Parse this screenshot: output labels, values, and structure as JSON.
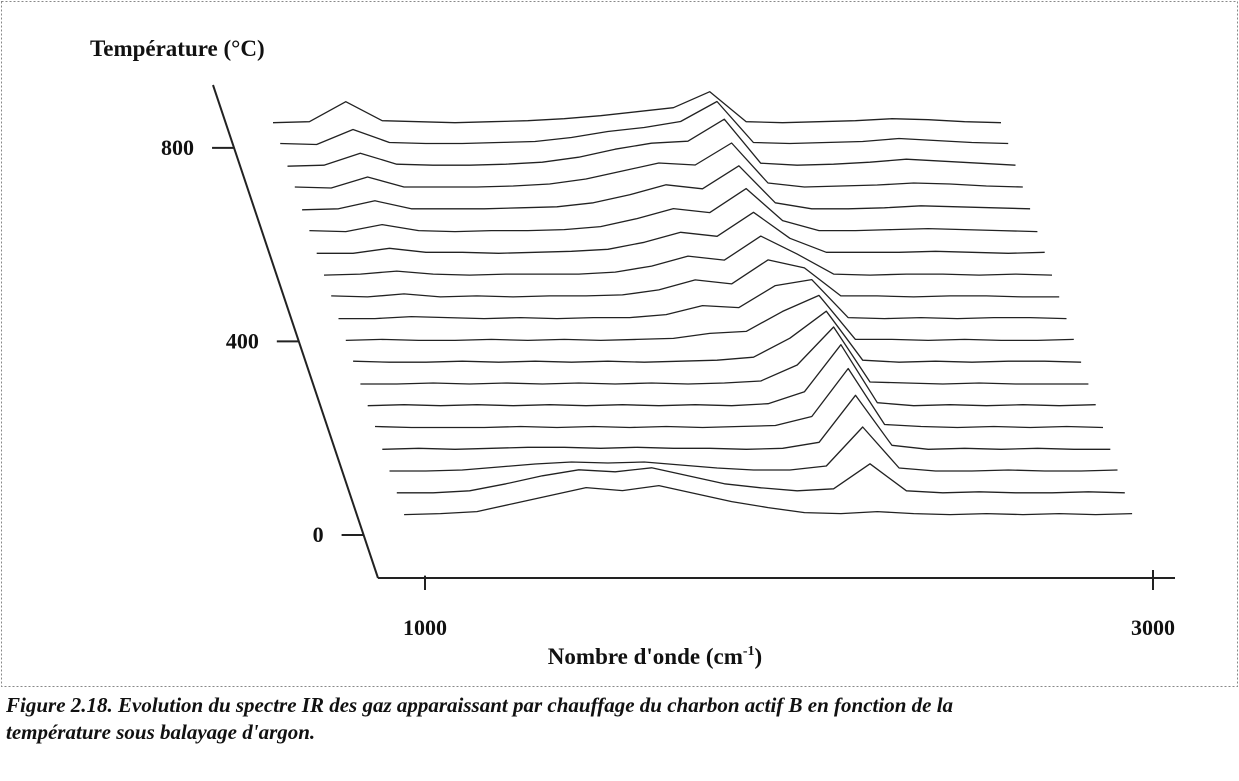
{
  "chart_data": {
    "type": "waterfall",
    "y_label": "Température (°C)",
    "x_label": [
      "Nombre d'onde (cm",
      "-1",
      ")"
    ],
    "caption": [
      "Figure 2.18. Evolution du spectre IR des gaz apparaissant par chauffage du charbon actif B en fonction de la",
      "température sous balayage d'argon."
    ],
    "xlim": [
      870,
      3060
    ],
    "xticks": [
      1000,
      3000
    ],
    "ylim": [
      -89,
      930
    ],
    "yticks": [
      0,
      400,
      800
    ],
    "color": "#222222",
    "x": [
      1000,
      1100,
      1200,
      1300,
      1400,
      1500,
      1600,
      1700,
      1800,
      1900,
      2000,
      2100,
      2200,
      2300,
      2400,
      2500,
      2600,
      2700,
      2800,
      2900,
      3000
    ],
    "series": [
      {
        "y": 40,
        "values": [
          1,
          2,
          4,
          12,
          20,
          28,
          25,
          30,
          22,
          14,
          8,
          3,
          2,
          4,
          2,
          1,
          2,
          1,
          2,
          1,
          2
        ]
      },
      {
        "y": 85,
        "values": [
          1,
          1,
          3,
          10,
          18,
          24,
          22,
          26,
          18,
          10,
          6,
          3,
          5,
          30,
          3,
          1,
          2,
          1,
          1,
          2,
          1
        ]
      },
      {
        "y": 130,
        "values": [
          1,
          1,
          2,
          5,
          8,
          10,
          9,
          10,
          7,
          4,
          2,
          2,
          6,
          45,
          4,
          1,
          1,
          2,
          1,
          1,
          2
        ]
      },
      {
        "y": 175,
        "values": [
          1,
          2,
          1,
          2,
          3,
          3,
          2,
          3,
          2,
          2,
          1,
          2,
          8,
          55,
          5,
          1,
          2,
          1,
          2,
          1,
          1
        ]
      },
      {
        "y": 220,
        "values": [
          2,
          1,
          1,
          1,
          2,
          1,
          2,
          1,
          2,
          1,
          2,
          3,
          12,
          60,
          4,
          2,
          1,
          2,
          1,
          2,
          1
        ]
      },
      {
        "y": 265,
        "values": [
          1,
          2,
          1,
          2,
          1,
          2,
          1,
          2,
          1,
          2,
          1,
          3,
          15,
          62,
          4,
          1,
          2,
          1,
          2,
          1,
          2
        ]
      },
      {
        "y": 310,
        "values": [
          1,
          1,
          2,
          1,
          2,
          1,
          2,
          1,
          2,
          1,
          2,
          4,
          20,
          58,
          3,
          2,
          1,
          2,
          1,
          1,
          1
        ]
      },
      {
        "y": 355,
        "values": [
          2,
          1,
          1,
          2,
          1,
          2,
          1,
          2,
          1,
          2,
          3,
          6,
          25,
          52,
          3,
          1,
          2,
          1,
          2,
          2,
          1
        ]
      },
      {
        "y": 400,
        "values": [
          1,
          2,
          1,
          1,
          2,
          1,
          2,
          1,
          2,
          3,
          8,
          10,
          30,
          46,
          2,
          2,
          1,
          2,
          1,
          1,
          2
        ]
      },
      {
        "y": 445,
        "values": [
          1,
          1,
          3,
          2,
          1,
          2,
          1,
          2,
          2,
          5,
          14,
          12,
          34,
          40,
          2,
          1,
          2,
          1,
          2,
          2,
          1
        ]
      },
      {
        "y": 490,
        "values": [
          2,
          1,
          4,
          1,
          2,
          1,
          2,
          2,
          3,
          8,
          18,
          14,
          38,
          30,
          2,
          2,
          1,
          2,
          2,
          1,
          1
        ]
      },
      {
        "y": 535,
        "values": [
          1,
          2,
          5,
          2,
          1,
          2,
          2,
          2,
          4,
          10,
          20,
          16,
          40,
          22,
          2,
          1,
          2,
          2,
          1,
          2,
          1
        ]
      },
      {
        "y": 580,
        "values": [
          1,
          1,
          6,
          2,
          2,
          1,
          2,
          3,
          5,
          12,
          22,
          18,
          42,
          16,
          2,
          2,
          2,
          3,
          2,
          1,
          2
        ]
      },
      {
        "y": 625,
        "values": [
          2,
          1,
          8,
          2,
          1,
          2,
          2,
          3,
          6,
          14,
          24,
          20,
          44,
          12,
          2,
          2,
          3,
          4,
          3,
          2,
          1
        ]
      },
      {
        "y": 670,
        "values": [
          1,
          2,
          10,
          2,
          2,
          2,
          3,
          4,
          8,
          16,
          26,
          22,
          45,
          8,
          2,
          2,
          3,
          5,
          4,
          3,
          2
        ]
      },
      {
        "y": 715,
        "values": [
          2,
          1,
          12,
          2,
          2,
          2,
          3,
          5,
          10,
          18,
          26,
          24,
          46,
          6,
          2,
          3,
          4,
          6,
          5,
          3,
          2
        ]
      },
      {
        "y": 760,
        "values": [
          1,
          2,
          14,
          3,
          2,
          2,
          3,
          5,
          10,
          18,
          24,
          26,
          48,
          4,
          2,
          3,
          5,
          8,
          6,
          4,
          2
        ]
      },
      {
        "y": 805,
        "values": [
          2,
          1,
          16,
          3,
          2,
          2,
          3,
          4,
          8,
          14,
          18,
          24,
          44,
          3,
          2,
          3,
          4,
          7,
          5,
          3,
          2
        ]
      },
      {
        "y": 850,
        "values": [
          1,
          2,
          22,
          3,
          2,
          1,
          2,
          3,
          5,
          8,
          12,
          16,
          32,
          2,
          1,
          2,
          3,
          5,
          4,
          2,
          1
        ]
      }
    ]
  }
}
